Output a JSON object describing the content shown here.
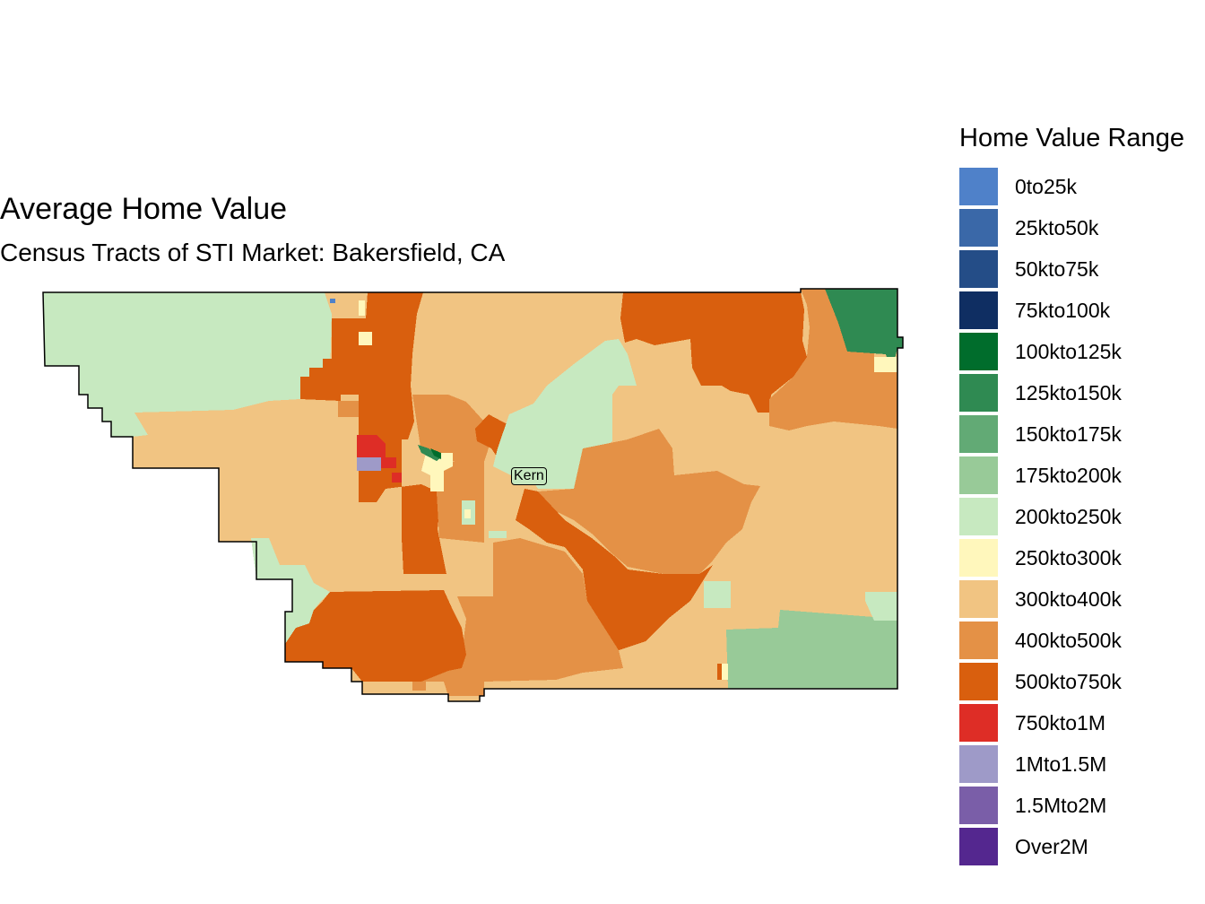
{
  "chart_data": {
    "type": "choropleth-map",
    "title": "Average Home Value",
    "subtitle": "Census Tracts of STI Market: Bakersfield, CA",
    "region_label": "Kern",
    "legend": {
      "title": "Home Value Range",
      "position": "right",
      "items": [
        {
          "label": "0to25k",
          "color": "#4f81c9"
        },
        {
          "label": "25kto50k",
          "color": "#3a68a8"
        },
        {
          "label": "50kto75k",
          "color": "#244d87"
        },
        {
          "label": "75kto100k",
          "color": "#0f2e62"
        },
        {
          "label": "100kto125k",
          "color": "#006d2c"
        },
        {
          "label": "125kto150k",
          "color": "#2f8a52"
        },
        {
          "label": "150kto175k",
          "color": "#62aa75"
        },
        {
          "label": "175kto200k",
          "color": "#98ca98"
        },
        {
          "label": "200kto250k",
          "color": "#c7e9c0"
        },
        {
          "label": "250kto300k",
          "color": "#fff7bc"
        },
        {
          "label": "300kto400k",
          "color": "#f1c482"
        },
        {
          "label": "400kto500k",
          "color": "#e49146"
        },
        {
          "label": "500kto750k",
          "color": "#d95f0e"
        },
        {
          "label": "750kto1M",
          "color": "#de2d26"
        },
        {
          "label": "1Mto1.5M",
          "color": "#9e9ac8"
        },
        {
          "label": "1.5Mto2M",
          "color": "#7a5ea8"
        },
        {
          "label": "Over2M",
          "color": "#54278f"
        }
      ]
    },
    "dominant_regions": [
      {
        "area": "northwest",
        "range": "200kto250k"
      },
      {
        "area": "west-central",
        "range": "300kto400k"
      },
      {
        "area": "bakersfield-west-corridor",
        "range": "500kto750k"
      },
      {
        "area": "bakersfield-core",
        "range": "250kto300k / 400kto500k mix"
      },
      {
        "area": "north-central",
        "range": "300kto400k"
      },
      {
        "area": "northeast-north",
        "range": "500kto750k"
      },
      {
        "area": "far-northeast",
        "range": "125kto150k"
      },
      {
        "area": "east",
        "range": "400kto500k / 300kto400k"
      },
      {
        "area": "south-central",
        "range": "400kto500k / 500kto750k"
      },
      {
        "area": "southwest",
        "range": "500kto750k"
      },
      {
        "area": "southeast",
        "range": "175kto200k"
      },
      {
        "area": "small-west-bakersfield",
        "range": "750kto1M / 1Mto1.5M"
      }
    ]
  }
}
